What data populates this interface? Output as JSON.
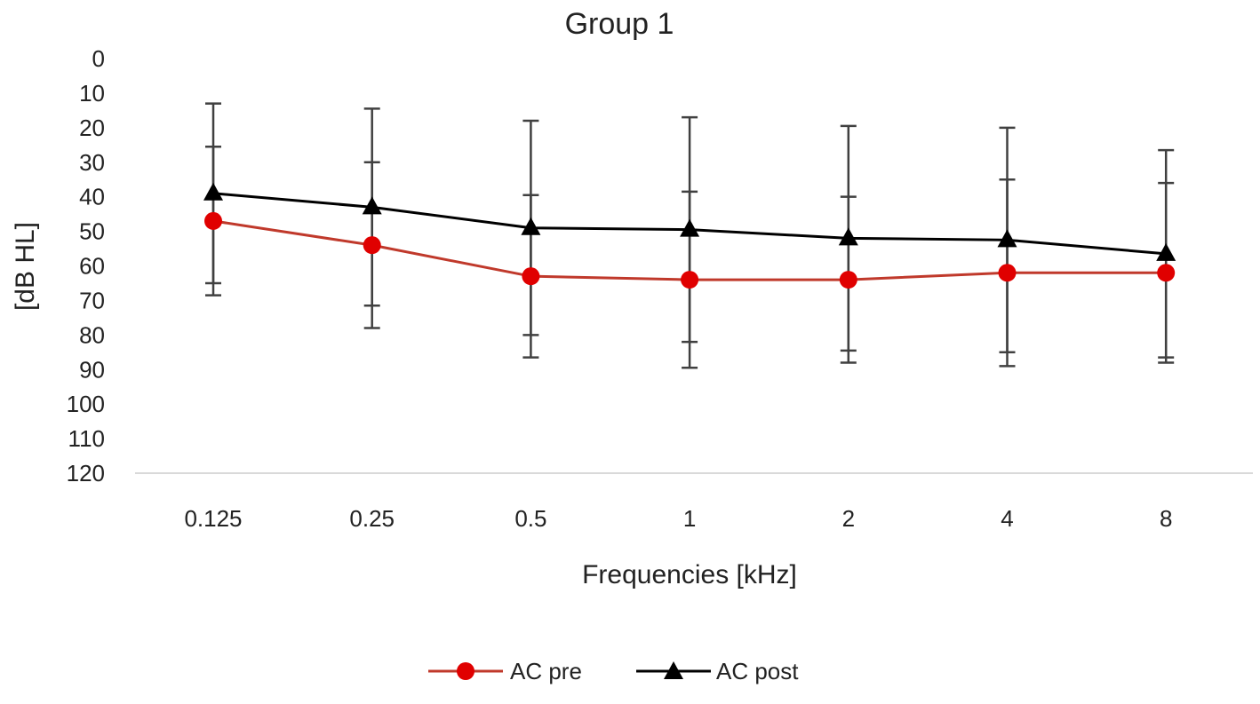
{
  "chart_data": {
    "type": "line",
    "title": "Group 1",
    "xlabel": "Frequencies [kHz]",
    "ylabel": "[dB HL]",
    "categories": [
      "0.125",
      "0.25",
      "0.5",
      "1",
      "2",
      "4",
      "8"
    ],
    "y_ticks": [
      "0",
      "10",
      "20",
      "30",
      "40",
      "50",
      "60",
      "70",
      "80",
      "90",
      "100",
      "110",
      "120"
    ],
    "ylim": [
      0,
      120
    ],
    "y_inverted": true,
    "grid": false,
    "legend_position": "bottom",
    "series": [
      {
        "name": "AC pre",
        "marker": "circle",
        "color": "#e00000",
        "line_color": "#c0392b",
        "values": [
          47,
          54,
          63,
          64,
          64,
          62,
          62
        ],
        "error": [
          21.5,
          24,
          23.5,
          25.5,
          24,
          27,
          26
        ]
      },
      {
        "name": "AC post",
        "marker": "triangle",
        "color": "#000000",
        "line_color": "#000000",
        "values": [
          39,
          43,
          49,
          49.5,
          52,
          52.5,
          56.5
        ],
        "error": [
          26,
          28.5,
          31,
          32.5,
          32.5,
          32.5,
          30
        ]
      }
    ]
  }
}
